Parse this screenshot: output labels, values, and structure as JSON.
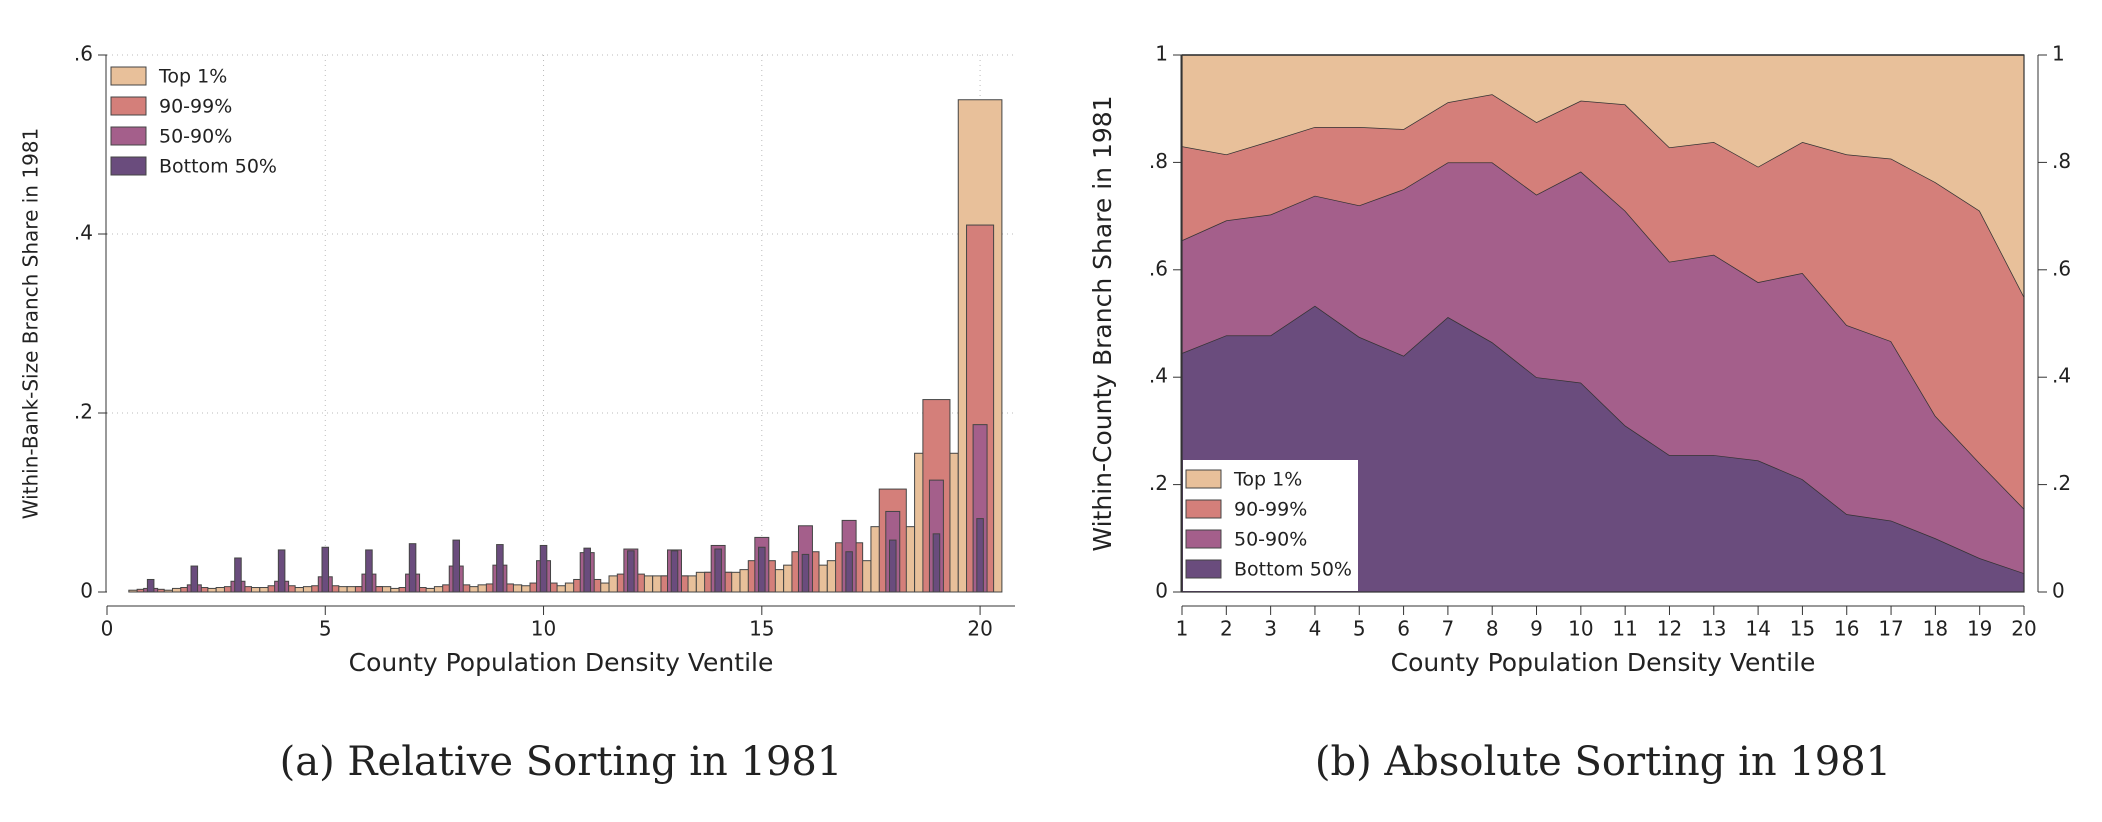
{
  "chart_data": [
    {
      "type": "bar",
      "caption": "(a) Relative Sorting in 1981",
      "x_label": "County Population Density Ventile",
      "y_label": "Within-Bank-Size Branch Share in 1981",
      "x": [
        1,
        2,
        3,
        4,
        5,
        6,
        7,
        8,
        9,
        10,
        11,
        12,
        13,
        14,
        15,
        16,
        17,
        18,
        19,
        20
      ],
      "series": [
        {
          "name": "Top 1%",
          "color": "#e8c09a",
          "values": [
            0.002,
            0.004,
            0.005,
            0.005,
            0.006,
            0.006,
            0.004,
            0.006,
            0.008,
            0.007,
            0.01,
            0.018,
            0.018,
            0.022,
            0.025,
            0.03,
            0.035,
            0.073,
            0.155,
            0.55
          ]
        },
        {
          "name": "90-99%",
          "color": "#d47f7a",
          "values": [
            0.003,
            0.005,
            0.006,
            0.007,
            0.007,
            0.006,
            0.005,
            0.008,
            0.009,
            0.01,
            0.014,
            0.02,
            0.018,
            0.022,
            0.035,
            0.045,
            0.055,
            0.115,
            0.215,
            0.41
          ]
        },
        {
          "name": "50-90%",
          "color": "#a45f8b",
          "values": [
            0.004,
            0.008,
            0.012,
            0.012,
            0.017,
            0.02,
            0.02,
            0.029,
            0.03,
            0.035,
            0.044,
            0.048,
            0.047,
            0.052,
            0.061,
            0.074,
            0.08,
            0.09,
            0.125,
            0.187
          ]
        },
        {
          "name": "Bottom 50%",
          "color": "#6a4c7d",
          "values": [
            0.014,
            0.029,
            0.038,
            0.047,
            0.05,
            0.047,
            0.054,
            0.058,
            0.053,
            0.052,
            0.049,
            0.046,
            0.046,
            0.048,
            0.05,
            0.042,
            0.045,
            0.058,
            0.065,
            0.082
          ]
        }
      ],
      "xlim": [
        0,
        20.8
      ],
      "xticks": [
        0,
        5,
        10,
        15,
        20
      ],
      "ylim": [
        0,
        0.6
      ],
      "yticks": [
        0,
        {
          "value": 0.2,
          "label": ".2"
        },
        {
          "value": 0.4,
          "label": ".4"
        },
        {
          "value": 0.6,
          "label": ".6"
        }
      ],
      "grid": true,
      "legend": "upper left"
    },
    {
      "type": "stacked_area",
      "caption": "(b) Absolute Sorting in 1981",
      "x_label": "County Population Density Ventile",
      "y_label": "Within-County Branch Share in 1981",
      "x": [
        1,
        2,
        3,
        4,
        5,
        6,
        7,
        8,
        9,
        10,
        11,
        12,
        13,
        14,
        15,
        16,
        17,
        18,
        19,
        20
      ],
      "series": [
        {
          "name": "Top 1%",
          "color": "#e8c09a",
          "values": [
            0.17,
            0.185,
            0.16,
            0.134,
            0.134,
            0.138,
            0.088,
            0.073,
            0.125,
            0.085,
            0.092,
            0.172,
            0.162,
            0.208,
            0.162,
            0.185,
            0.193,
            0.237,
            0.29,
            0.45
          ]
        },
        {
          "name": "90-99%",
          "color": "#d47f7a",
          "values": [
            0.175,
            0.123,
            0.137,
            0.128,
            0.146,
            0.112,
            0.112,
            0.127,
            0.135,
            0.132,
            0.198,
            0.213,
            0.21,
            0.215,
            0.244,
            0.318,
            0.34,
            0.435,
            0.47,
            0.395
          ]
        },
        {
          "name": "50-90%",
          "color": "#a45f8b",
          "values": [
            0.21,
            0.214,
            0.225,
            0.205,
            0.245,
            0.31,
            0.288,
            0.335,
            0.34,
            0.393,
            0.4,
            0.36,
            0.373,
            0.332,
            0.384,
            0.352,
            0.334,
            0.228,
            0.177,
            0.12
          ]
        },
        {
          "name": "Bottom 50%",
          "color": "#6a4c7d",
          "values": [
            0.445,
            0.478,
            0.478,
            0.533,
            0.475,
            0.44,
            0.512,
            0.465,
            0.4,
            0.39,
            0.31,
            0.255,
            0.255,
            0.245,
            0.21,
            0.145,
            0.133,
            0.1,
            0.063,
            0.035
          ]
        }
      ],
      "xlim": [
        1,
        20
      ],
      "xticks": [
        1,
        2,
        3,
        4,
        5,
        6,
        7,
        8,
        9,
        10,
        11,
        12,
        13,
        14,
        15,
        16,
        17,
        18,
        19,
        20
      ],
      "ylim": [
        0,
        1
      ],
      "yticks": [
        0,
        {
          "value": 0.2,
          "label": ".2"
        },
        {
          "value": 0.4,
          "label": ".4"
        },
        {
          "value": 0.6,
          "label": ".6"
        },
        {
          "value": 0.8,
          "label": ".8"
        },
        1
      ],
      "y2lim": [
        0,
        1
      ],
      "y2ticks": [
        0,
        {
          "value": 0.2,
          "label": ".2"
        },
        {
          "value": 0.4,
          "label": ".4"
        },
        {
          "value": 0.6,
          "label": ".6"
        },
        {
          "value": 0.8,
          "label": ".8"
        },
        1
      ],
      "grid": false,
      "legend": "lower left"
    }
  ]
}
